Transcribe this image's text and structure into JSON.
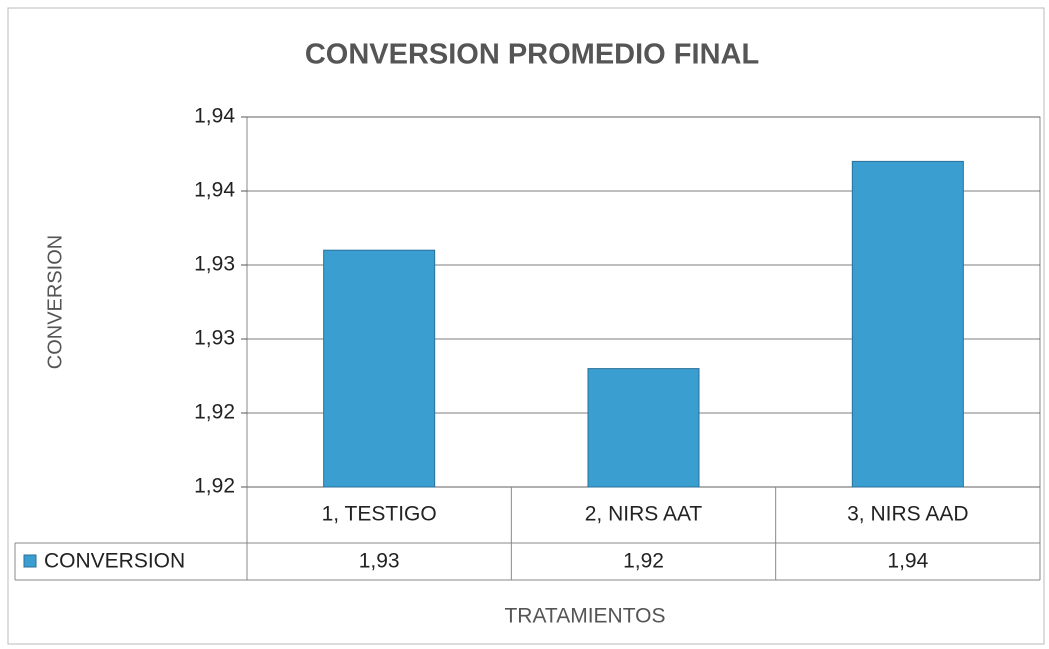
{
  "chart_data": {
    "type": "bar",
    "title": "CONVERSION PROMEDIO FINAL",
    "y_label": "CONVERSION",
    "x_label": "TRATAMIENTOS",
    "categories": [
      "1, TESTIGO",
      "2, NIRS AAT",
      "3, NIRS AAD"
    ],
    "series": [
      {
        "name": "CONVERSION",
        "color": "#3a9fd0",
        "values": [
          1.931,
          1.923,
          1.937
        ],
        "value_labels": [
          "1,93",
          "1,92",
          "1,94"
        ]
      }
    ],
    "ylim": [
      1.915,
      1.94
    ],
    "yticks": [
      {
        "value": 1.915,
        "label": "1,92"
      },
      {
        "value": 1.92,
        "label": "1,92"
      },
      {
        "value": 1.925,
        "label": "1,93"
      },
      {
        "value": 1.93,
        "label": "1,93"
      },
      {
        "value": 1.935,
        "label": "1,94"
      },
      {
        "value": 1.94,
        "label": "1,94"
      }
    ],
    "grid": true
  }
}
